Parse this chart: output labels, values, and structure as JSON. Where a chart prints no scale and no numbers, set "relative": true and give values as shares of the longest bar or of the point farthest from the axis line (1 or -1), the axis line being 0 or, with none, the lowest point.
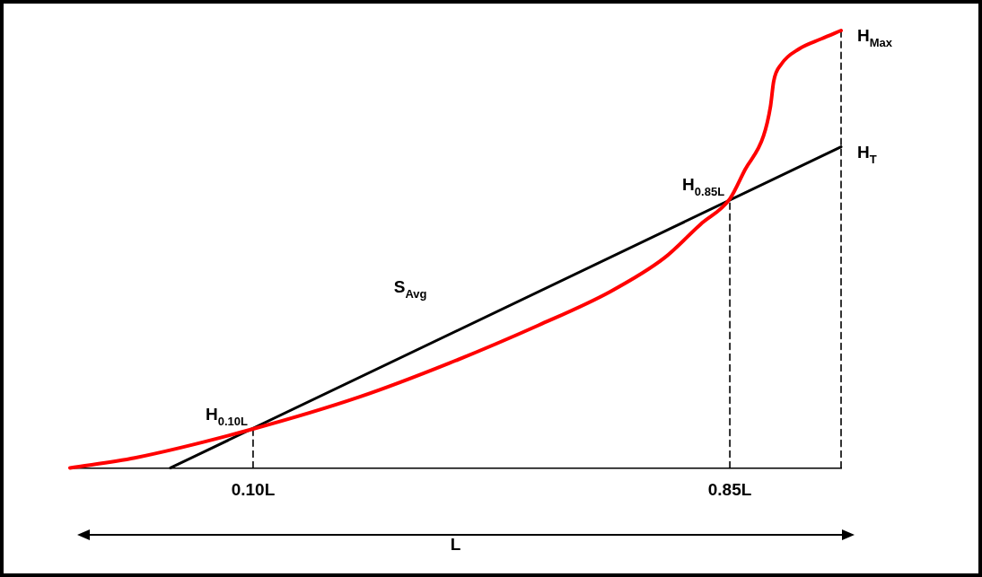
{
  "chart_data": {
    "type": "line",
    "relative": true,
    "xlabel": "L",
    "xlim": [
      -0.188,
      1.025
    ],
    "xticks": [
      {
        "value": 0.1,
        "label": "0.10L"
      },
      {
        "value": 0.85,
        "label": "0.85L"
      }
    ],
    "tick_labels": "x",
    "legend": false,
    "series": [
      {
        "color": "#ff0000",
        "x": [
          -0.188,
          -0.086,
          0.1,
          0.267,
          0.408,
          0.549,
          0.662,
          0.747,
          0.804,
          0.85,
          0.874,
          0.903,
          0.914,
          0.919,
          0.931,
          0.959,
          0.994,
          1.025
        ],
        "values": [
          0,
          0.023,
          0.089,
          0.162,
          0.239,
          0.326,
          0.403,
          0.48,
          0.557,
          0.615,
          0.682,
          0.759,
          0.827,
          0.884,
          0.923,
          0.958,
          0.981,
          1.0
        ]
      },
      {
        "color": "#000000",
        "x": [
          -0.03,
          1.025
        ],
        "values": [
          0,
          0.734
        ]
      },
      {
        "color": "#000000",
        "line_style": "dashed",
        "x": [
          0.1,
          0.1
        ],
        "values": [
          0,
          0.089
        ]
      },
      {
        "color": "#000000",
        "line_style": "dashed",
        "x": [
          0.85,
          0.85
        ],
        "values": [
          0,
          0.615
        ]
      },
      {
        "color": "#000000",
        "line_style": "dashed",
        "x": [
          1.025,
          1.025
        ],
        "values": [
          0,
          1.0
        ]
      }
    ],
    "annotations": [
      {
        "text": "H$_{Max}$",
        "x": 1.025,
        "y": 1.0
      },
      {
        "text": "H$_{T}$",
        "x": 1.025,
        "y": 0.734
      },
      {
        "text": "H$_{0.85L}$",
        "x": 0.85,
        "y": 0.615
      },
      "S$_{Avg}$",
      {
        "text": "H$_{0.10L}$",
        "x": 0.1,
        "y": 0.089
      }
    ]
  }
}
